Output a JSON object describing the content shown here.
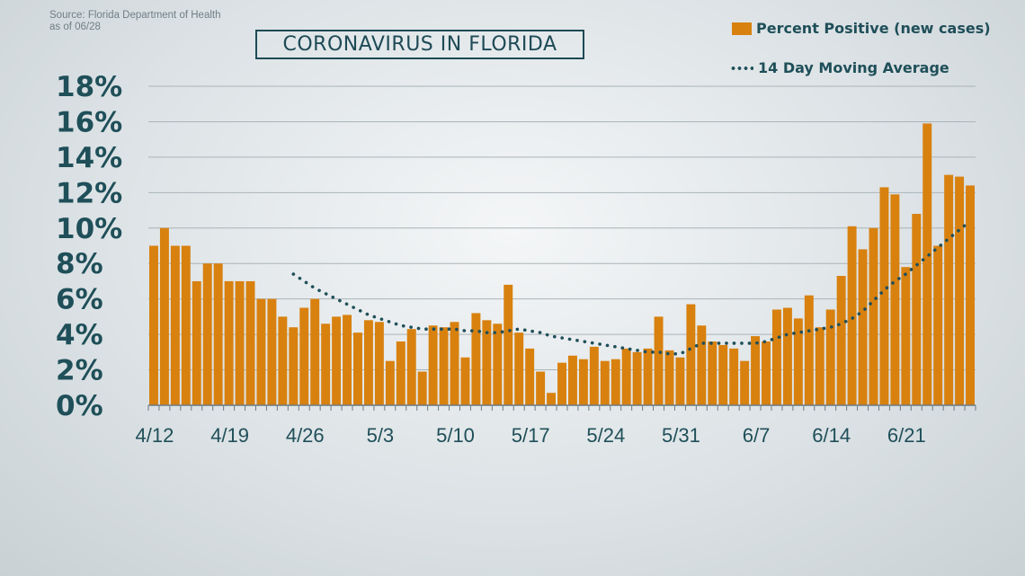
{
  "source": {
    "line1": "Source: Florida Department of Health",
    "line2": "as of 06/28"
  },
  "colors": {
    "bar": "#d8810f",
    "avg": "#1f4f59",
    "grid": "#aab4b8",
    "axis": "#6b7b82"
  },
  "chart_data": {
    "type": "bar",
    "title": "CORONAVIRUS IN FLORIDA",
    "legend": [
      "Percent Positive (new cases)",
      "14 Day Moving Average"
    ],
    "legend_position": "top-right",
    "grid": true,
    "ylim": [
      0,
      18
    ],
    "yticks": [
      0,
      2,
      4,
      6,
      8,
      10,
      12,
      14,
      16,
      18
    ],
    "ytick_labels": [
      "0%",
      "2%",
      "4%",
      "6%",
      "8%",
      "10%",
      "12%",
      "14%",
      "16%",
      "18%"
    ],
    "xtick_labels": [
      "4/12",
      "4/19",
      "4/26",
      "5/3",
      "5/10",
      "5/17",
      "5/24",
      "5/31",
      "6/7",
      "6/14",
      "6/21"
    ],
    "categories": [
      "4/12",
      "4/13",
      "4/14",
      "4/15",
      "4/16",
      "4/17",
      "4/18",
      "4/19",
      "4/20",
      "4/21",
      "4/22",
      "4/23",
      "4/24",
      "4/25",
      "4/26",
      "4/27",
      "4/28",
      "4/29",
      "4/30",
      "5/1",
      "5/2",
      "5/3",
      "5/4",
      "5/5",
      "5/6",
      "5/7",
      "5/8",
      "5/9",
      "5/10",
      "5/11",
      "5/12",
      "5/13",
      "5/14",
      "5/15",
      "5/16",
      "5/17",
      "5/18",
      "5/19",
      "5/20",
      "5/21",
      "5/22",
      "5/23",
      "5/24",
      "5/25",
      "5/26",
      "5/27",
      "5/28",
      "5/29",
      "5/30",
      "5/31",
      "6/1",
      "6/2",
      "6/3",
      "6/4",
      "6/5",
      "6/6",
      "6/7",
      "6/8",
      "6/9",
      "6/10",
      "6/11",
      "6/12",
      "6/13",
      "6/14",
      "6/15",
      "6/16",
      "6/17",
      "6/18",
      "6/19",
      "6/20",
      "6/21",
      "6/22",
      "6/23",
      "6/24",
      "6/25",
      "6/26",
      "6/27"
    ],
    "series": [
      {
        "name": "Percent Positive (new cases)",
        "type": "bar",
        "values": [
          9.0,
          10.0,
          9.0,
          9.0,
          7.0,
          8.0,
          8.0,
          7.0,
          7.0,
          7.0,
          6.0,
          6.0,
          5.0,
          4.4,
          5.5,
          6.0,
          4.6,
          5.0,
          5.1,
          4.1,
          4.8,
          4.7,
          2.5,
          3.6,
          4.3,
          1.9,
          4.5,
          4.4,
          4.7,
          2.7,
          5.2,
          4.8,
          4.6,
          6.8,
          4.1,
          3.2,
          1.9,
          0.7,
          2.4,
          2.8,
          2.6,
          3.3,
          2.5,
          2.6,
          3.2,
          3.0,
          3.2,
          5.0,
          3.1,
          2.7,
          5.7,
          4.5,
          3.6,
          3.4,
          3.2,
          2.5,
          3.9,
          3.6,
          5.4,
          5.5,
          4.9,
          6.2,
          4.4,
          5.4,
          7.3,
          10.1,
          8.8,
          10.0,
          12.3,
          11.9,
          7.8,
          10.8,
          15.9,
          9.0,
          13.0,
          12.9,
          12.4
        ]
      },
      {
        "name": "14 Day Moving Average",
        "type": "line",
        "values": [
          null,
          null,
          null,
          null,
          null,
          null,
          null,
          null,
          null,
          null,
          null,
          null,
          null,
          7.4,
          7.0,
          6.6,
          6.3,
          6.0,
          5.7,
          5.4,
          5.1,
          4.9,
          4.7,
          4.5,
          4.4,
          4.3,
          4.3,
          4.3,
          4.3,
          4.2,
          4.2,
          4.1,
          4.1,
          4.2,
          4.3,
          4.2,
          4.1,
          3.9,
          3.8,
          3.7,
          3.6,
          3.5,
          3.4,
          3.3,
          3.2,
          3.1,
          3.0,
          3.0,
          2.9,
          2.9,
          3.2,
          3.5,
          3.5,
          3.5,
          3.5,
          3.5,
          3.5,
          3.6,
          3.8,
          4.0,
          4.1,
          4.2,
          4.3,
          4.4,
          4.6,
          4.9,
          5.3,
          5.9,
          6.5,
          7.0,
          7.4,
          7.9,
          8.4,
          8.9,
          9.4,
          9.9,
          10.4
        ]
      }
    ]
  }
}
